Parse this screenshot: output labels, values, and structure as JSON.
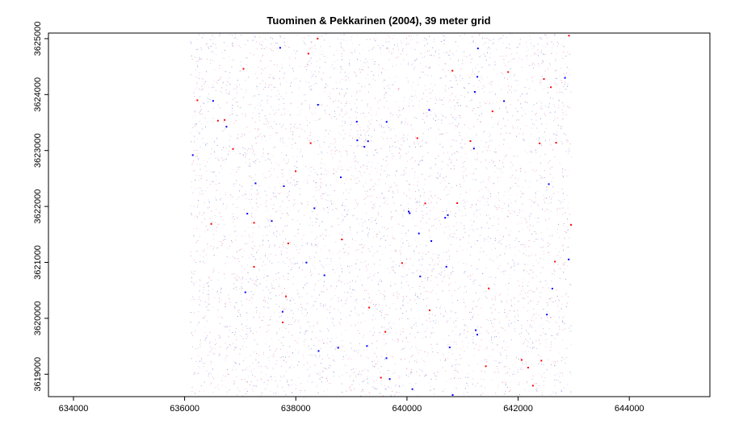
{
  "chart_data": {
    "type": "heatmap",
    "title": "Tuominen & Pekkarinen (2004), 39 meter grid",
    "xlabel": "",
    "ylabel": "",
    "xlim": [
      633550,
      645450
    ],
    "ylim": [
      3618600,
      3625100
    ],
    "x_ticks": [
      634000,
      636000,
      638000,
      640000,
      642000,
      644000
    ],
    "x_tick_labels": [
      "634000",
      "636000",
      "638000",
      "640000",
      "642000",
      "644000"
    ],
    "y_ticks": [
      3619000,
      3620000,
      3621000,
      3622000,
      3623000,
      3624000,
      3625000
    ],
    "y_tick_labels": [
      "3619000",
      "3620000",
      "3621000",
      "3622000",
      "3623000",
      "3624000",
      "3625000"
    ],
    "raster_extent": {
      "xmin": 636100,
      "xmax": 642950,
      "ymin": 3618600,
      "ymax": 3625100
    },
    "grid_cell_size_m": 39,
    "colors": {
      "low": "#0000ff",
      "mid": "#ffffff",
      "high": "#ff0000",
      "axis": "#000000"
    },
    "grid": false,
    "legend": "none"
  }
}
